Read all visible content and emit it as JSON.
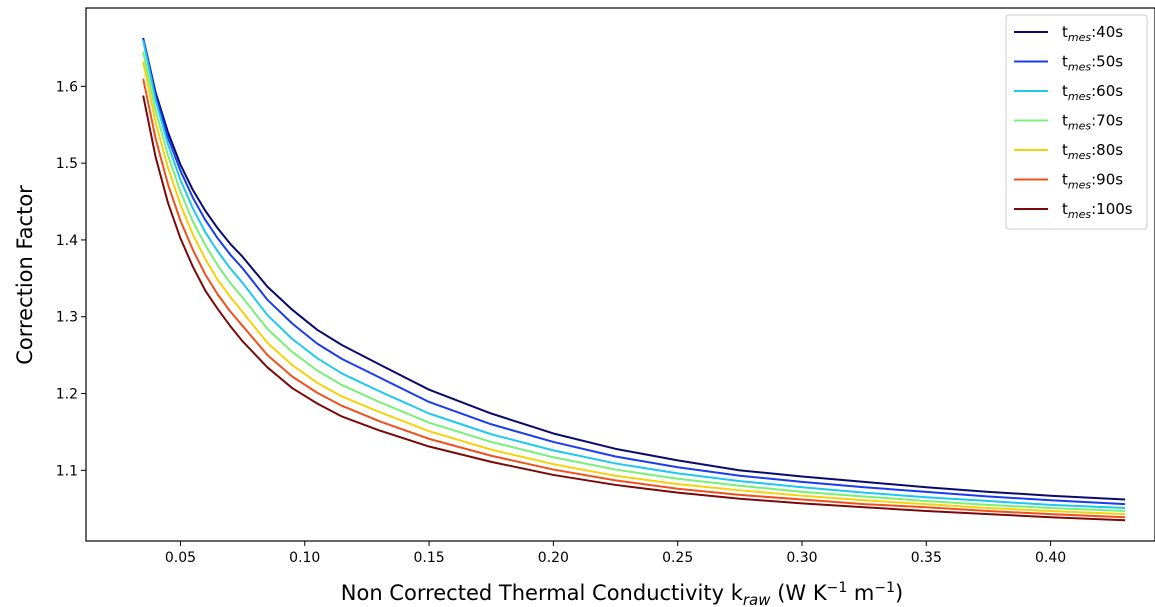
{
  "chart_data": {
    "type": "line",
    "xlabel": {
      "prefix": "Non Corrected Thermal Conductivity k",
      "sub": "raw",
      "units_open": " (W K",
      "exp1": "−1",
      "units_mid": " m",
      "exp2": "−1",
      "units_close": ")"
    },
    "ylabel": "Correction Factor",
    "xlim": [
      0.012,
      0.442
    ],
    "ylim": [
      1.008,
      1.702
    ],
    "xticks": [
      0.05,
      0.1,
      0.15,
      0.2,
      0.25,
      0.3,
      0.35,
      0.4
    ],
    "xtick_labels": [
      "0.05",
      "0.10",
      "0.15",
      "0.20",
      "0.25",
      "0.30",
      "0.35",
      "0.40"
    ],
    "yticks": [
      1.1,
      1.2,
      1.3,
      1.4,
      1.5,
      1.6
    ],
    "ytick_labels": [
      "1.1",
      "1.2",
      "1.3",
      "1.4",
      "1.5",
      "1.6"
    ],
    "legend_position": "top-right",
    "x": [
      0.035,
      0.04,
      0.045,
      0.05,
      0.055,
      0.06,
      0.065,
      0.07,
      0.075,
      0.085,
      0.095,
      0.105,
      0.115,
      0.13,
      0.15,
      0.175,
      0.2,
      0.225,
      0.25,
      0.275,
      0.3,
      0.325,
      0.35,
      0.375,
      0.4,
      0.43
    ],
    "series": [
      {
        "name_base": "t",
        "name_sub": "mes",
        "name_suffix": ":40s",
        "color": "#0a0a6e",
        "values": [
          1.663,
          1.592,
          1.54,
          1.498,
          1.465,
          1.438,
          1.415,
          1.395,
          1.378,
          1.339,
          1.309,
          1.283,
          1.263,
          1.238,
          1.205,
          1.174,
          1.148,
          1.128,
          1.113,
          1.1,
          1.092,
          1.085,
          1.078,
          1.072,
          1.067,
          1.062
        ]
      },
      {
        "name_base": "t",
        "name_sub": "mes",
        "name_suffix": ":50s",
        "color": "#1a3cf0",
        "values": [
          1.662,
          1.588,
          1.533,
          1.49,
          1.455,
          1.426,
          1.402,
          1.381,
          1.363,
          1.322,
          1.291,
          1.265,
          1.245,
          1.221,
          1.189,
          1.16,
          1.137,
          1.118,
          1.104,
          1.093,
          1.085,
          1.078,
          1.072,
          1.066,
          1.061,
          1.056
        ]
      },
      {
        "name_base": "t",
        "name_sub": "mes",
        "name_suffix": ":60s",
        "color": "#1ec8f0",
        "values": [
          1.66,
          1.582,
          1.524,
          1.478,
          1.441,
          1.41,
          1.385,
          1.363,
          1.344,
          1.302,
          1.271,
          1.246,
          1.226,
          1.203,
          1.174,
          1.147,
          1.126,
          1.109,
          1.096,
          1.086,
          1.078,
          1.071,
          1.065,
          1.06,
          1.055,
          1.051
        ]
      },
      {
        "name_base": "t",
        "name_sub": "mes",
        "name_suffix": ":70s",
        "color": "#78f078",
        "values": [
          1.645,
          1.568,
          1.51,
          1.463,
          1.424,
          1.393,
          1.367,
          1.344,
          1.325,
          1.284,
          1.254,
          1.23,
          1.211,
          1.189,
          1.162,
          1.137,
          1.117,
          1.101,
          1.089,
          1.08,
          1.072,
          1.066,
          1.06,
          1.055,
          1.051,
          1.047
        ]
      },
      {
        "name_base": "t",
        "name_sub": "mes",
        "name_suffix": ":80s",
        "color": "#f5d20a",
        "values": [
          1.632,
          1.553,
          1.494,
          1.446,
          1.407,
          1.375,
          1.348,
          1.326,
          1.306,
          1.266,
          1.237,
          1.214,
          1.196,
          1.176,
          1.151,
          1.127,
          1.108,
          1.093,
          1.082,
          1.074,
          1.067,
          1.061,
          1.056,
          1.051,
          1.047,
          1.043
        ]
      },
      {
        "name_base": "t",
        "name_sub": "mes",
        "name_suffix": ":90s",
        "color": "#f0501e",
        "values": [
          1.61,
          1.532,
          1.472,
          1.425,
          1.387,
          1.355,
          1.329,
          1.307,
          1.288,
          1.25,
          1.222,
          1.201,
          1.184,
          1.164,
          1.141,
          1.119,
          1.101,
          1.087,
          1.076,
          1.068,
          1.062,
          1.056,
          1.052,
          1.047,
          1.043,
          1.039
        ]
      },
      {
        "name_base": "t",
        "name_sub": "mes",
        "name_suffix": ":100s",
        "color": "#7a0a0a",
        "values": [
          1.588,
          1.508,
          1.448,
          1.402,
          1.365,
          1.334,
          1.31,
          1.288,
          1.268,
          1.234,
          1.207,
          1.187,
          1.17,
          1.152,
          1.131,
          1.111,
          1.094,
          1.081,
          1.071,
          1.063,
          1.057,
          1.052,
          1.047,
          1.043,
          1.039,
          1.035
        ]
      }
    ]
  }
}
